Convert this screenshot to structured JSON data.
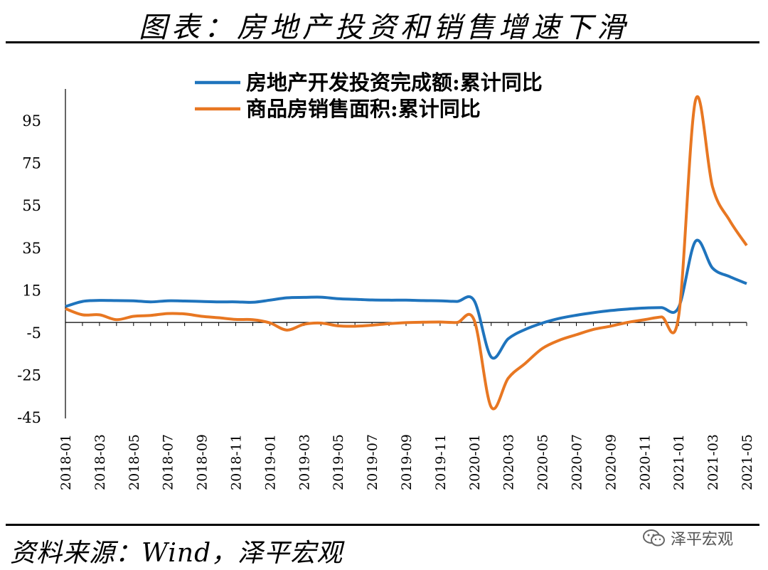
{
  "header": {
    "title": "图表：房地产投资和销售增速下滑"
  },
  "footer": {
    "source": "资料来源：Wind，泽平宏观",
    "watermark": "泽平宏观",
    "watermark_icon": "wechat-icon"
  },
  "chart_data": {
    "type": "line",
    "title": "图表：房地产投资和销售增速下滑",
    "xlabel": "",
    "ylabel": "",
    "ylim": [
      -45,
      105
    ],
    "yticks": [
      95,
      75,
      55,
      35,
      15,
      -5,
      -25,
      -45
    ],
    "x_tick_labels": [
      "2018-01",
      "2018-03",
      "2018-05",
      "2018-07",
      "2018-09",
      "2018-11",
      "2019-01",
      "2019-03",
      "2019-05",
      "2019-07",
      "2019-09",
      "2019-11",
      "2020-01",
      "2020-03",
      "2020-05",
      "2020-07",
      "2020-09",
      "2020-11",
      "2021-01",
      "2021-03",
      "2021-05"
    ],
    "legend_position": "top",
    "grid": false,
    "x": [
      "2018-01",
      "2018-02",
      "2018-03",
      "2018-04",
      "2018-05",
      "2018-06",
      "2018-07",
      "2018-08",
      "2018-09",
      "2018-10",
      "2018-11",
      "2018-12",
      "2019-01",
      "2019-02",
      "2019-03",
      "2019-04",
      "2019-05",
      "2019-06",
      "2019-07",
      "2019-08",
      "2019-09",
      "2019-10",
      "2019-11",
      "2019-12",
      "2020-01",
      "2020-02",
      "2020-03",
      "2020-04",
      "2020-05",
      "2020-06",
      "2020-07",
      "2020-08",
      "2020-09",
      "2020-10",
      "2020-11",
      "2020-12",
      "2021-01",
      "2021-02",
      "2021-03",
      "2021-04",
      "2021-05"
    ],
    "series": [
      {
        "name": "房地产开发投资完成额:累计同比",
        "color": "#1F74BD",
        "values": [
          7.5,
          9.9,
          10.4,
          10.3,
          10.2,
          9.7,
          10.2,
          10.1,
          9.9,
          9.7,
          9.7,
          9.5,
          10.5,
          11.6,
          11.8,
          11.9,
          11.2,
          10.9,
          10.6,
          10.5,
          10.5,
          10.3,
          10.2,
          9.9,
          10.3,
          -16.3,
          -7.7,
          -3.3,
          -0.3,
          1.9,
          3.4,
          4.6,
          5.6,
          6.3,
          6.8,
          7.0,
          7.0,
          38.3,
          25.6,
          21.6,
          18.3
        ]
      },
      {
        "name": "商品房销售面积:累计同比",
        "color": "#E87722",
        "values": [
          6.5,
          3.6,
          3.6,
          1.3,
          2.9,
          3.3,
          4.2,
          4.0,
          2.9,
          2.2,
          1.4,
          1.3,
          -0.2,
          -3.6,
          -0.9,
          -0.3,
          -1.6,
          -1.8,
          -1.3,
          -0.6,
          -0.1,
          0.1,
          0.2,
          0.0,
          1.1,
          -39.9,
          -26.3,
          -19.3,
          -12.3,
          -8.4,
          -5.8,
          -3.3,
          -1.8,
          0.0,
          1.3,
          2.6,
          2.6,
          104.9,
          63.8,
          48.1,
          36.3
        ]
      }
    ]
  }
}
